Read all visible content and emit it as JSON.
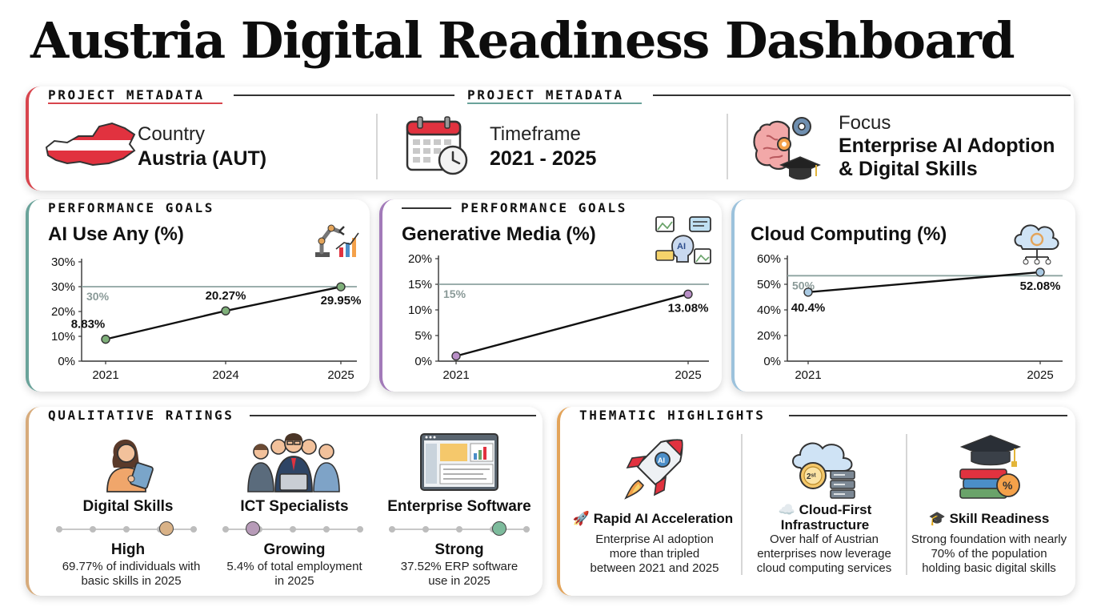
{
  "title": "Austria Digital Readiness Dashboard",
  "metadata": {
    "label_left": "PROJECT METADATA",
    "label_right": "PROJECT METADATA",
    "country_key": "Country",
    "country_value": "Austria (AUT)",
    "timeframe_key": "Timeframe",
    "timeframe_value": "2021 - 2025",
    "focus_key": "Focus",
    "focus_value_line1": "Enterprise AI Adoption",
    "focus_value_line2": "& Digital Skills",
    "flag_colors": [
      "#e1323f",
      "#ffffff"
    ]
  },
  "goals": {
    "label_1": "PERFORMANCE GOALS",
    "label_2": "PERFORMANCE GOALS"
  },
  "chart_data": [
    {
      "type": "line",
      "title": "AI Use Any (%)",
      "x": [
        "2021",
        "2024",
        "2025"
      ],
      "values": [
        8.83,
        20.27,
        29.95
      ],
      "point_labels": [
        "8.83%",
        "20.27%",
        "29.95%"
      ],
      "ytick_labels": [
        "0%",
        "10%",
        "20%",
        "30%",
        "30%"
      ],
      "target": 30,
      "target_label": "30%",
      "ylim": [
        0,
        40
      ],
      "point_color": "#7fb07a",
      "accent": "#6aa39a"
    },
    {
      "type": "line",
      "title": "Generative Media (%)",
      "x": [
        "2021",
        "2025"
      ],
      "values": [
        1,
        13.08
      ],
      "point_labels": [
        "",
        "13.08%"
      ],
      "ytick_labels": [
        "0%",
        "5%",
        "10%",
        "15%",
        "20%"
      ],
      "target": 15,
      "target_label": "15%",
      "ylim": [
        0,
        20
      ],
      "point_color": "#b98fc7",
      "accent": "#a27ab9"
    },
    {
      "type": "line",
      "title": "Cloud Computing (%)",
      "x": [
        "2021",
        "2025"
      ],
      "values": [
        40.4,
        52.08
      ],
      "point_labels": [
        "40.4%",
        "52.08%"
      ],
      "ytick_labels": [
        "0%",
        "20%",
        "40%",
        "50%",
        "60%"
      ],
      "target": 50,
      "target_label": "50%",
      "ylim": [
        0,
        60
      ],
      "point_color": "#a9c9e2",
      "accent": "#9cc2dc"
    }
  ],
  "ratings": {
    "label": "QUALITATIVE RATINGS",
    "items": [
      {
        "name": "Digital Skills",
        "level": "High",
        "desc": "69.77% of individuals with basic skills in 2025",
        "knob_position": 0.8,
        "knob_color": "#d9b287"
      },
      {
        "name": "ICT Specialists",
        "level": "Growing",
        "desc": "5.4% of total employment in 2025",
        "knob_position": 0.2,
        "knob_color": "#b79bb8"
      },
      {
        "name": "Enterprise Software",
        "level": "Strong",
        "desc": "37.52% ERP software use in 2025",
        "knob_position": 0.8,
        "knob_color": "#7dbb9c"
      }
    ]
  },
  "highlights": {
    "label": "THEMATIC HIGHLIGHTS",
    "items": [
      {
        "title": "🚀 Rapid AI Acceleration",
        "desc": "Enterprise AI adoption more than tripled between 2021 and 2025"
      },
      {
        "title": "☁️ Cloud-First Infrastructure",
        "desc": "Over half of Austrian enterprises now leverage cloud computing services"
      },
      {
        "title": "🎓 Skill Readiness",
        "desc": "Strong foundation with nearly 70% of the population holding basic digital skills"
      }
    ]
  }
}
